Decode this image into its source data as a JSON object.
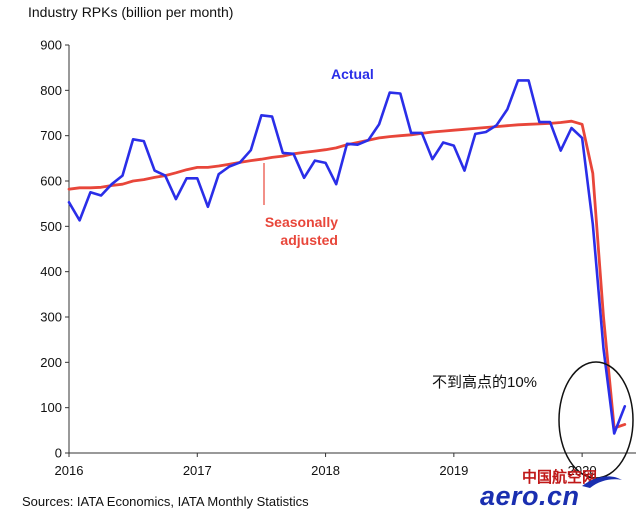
{
  "chart_data": {
    "type": "line",
    "title": "Industry RPKs (billion per month)",
    "source": "Sources: IATA Economics, IATA Monthly Statistics",
    "ylim": [
      0,
      900
    ],
    "y_ticks": [
      0,
      100,
      200,
      300,
      400,
      500,
      600,
      700,
      800,
      900
    ],
    "xlim": [
      2016,
      2020.42
    ],
    "x_ticks": [
      2016,
      2017,
      2018,
      2019,
      2020
    ],
    "x_tick_labels": [
      "2016",
      "2017",
      "2018",
      "2019",
      "2020"
    ],
    "grid": false,
    "series": [
      {
        "name": "Actual",
        "color": "#2a2ee8",
        "x": [
          2016.0,
          2016.083,
          2016.167,
          2016.25,
          2016.333,
          2016.417,
          2016.5,
          2016.583,
          2016.667,
          2016.75,
          2016.833,
          2016.917,
          2017.0,
          2017.083,
          2017.167,
          2017.25,
          2017.333,
          2017.417,
          2017.5,
          2017.583,
          2017.667,
          2017.75,
          2017.833,
          2017.917,
          2018.0,
          2018.083,
          2018.167,
          2018.25,
          2018.333,
          2018.417,
          2018.5,
          2018.583,
          2018.667,
          2018.75,
          2018.833,
          2018.917,
          2019.0,
          2019.083,
          2019.167,
          2019.25,
          2019.333,
          2019.417,
          2019.5,
          2019.583,
          2019.667,
          2019.75,
          2019.833,
          2019.917,
          2020.0,
          2020.083,
          2020.167,
          2020.25,
          2020.333
        ],
        "values": [
          553,
          513,
          575,
          568,
          593,
          612,
          692,
          688,
          623,
          612,
          560,
          606,
          606,
          543,
          615,
          632,
          641,
          668,
          745,
          742,
          662,
          660,
          607,
          645,
          640,
          593,
          682,
          680,
          690,
          725,
          795,
          793,
          706,
          706,
          648,
          685,
          678,
          623,
          704,
          708,
          723,
          758,
          822,
          822,
          730,
          730,
          667,
          717,
          695,
          505,
          230,
          43,
          103
        ]
      },
      {
        "name": "Seasonally adjusted",
        "color": "#e8463a",
        "x": [
          2016.0,
          2016.083,
          2016.167,
          2016.25,
          2016.333,
          2016.417,
          2016.5,
          2016.583,
          2016.667,
          2016.75,
          2016.833,
          2016.917,
          2017.0,
          2017.083,
          2017.167,
          2017.25,
          2017.333,
          2017.417,
          2017.5,
          2017.583,
          2017.667,
          2017.75,
          2017.833,
          2017.917,
          2018.0,
          2018.083,
          2018.167,
          2018.25,
          2018.333,
          2018.417,
          2018.5,
          2018.583,
          2018.667,
          2018.75,
          2018.833,
          2018.917,
          2019.0,
          2019.083,
          2019.167,
          2019.25,
          2019.333,
          2019.417,
          2019.5,
          2019.583,
          2019.667,
          2019.75,
          2019.833,
          2019.917,
          2020.0,
          2020.083,
          2020.167,
          2020.25,
          2020.333
        ],
        "values": [
          582,
          585,
          585,
          586,
          590,
          593,
          600,
          603,
          608,
          612,
          618,
          625,
          630,
          630,
          633,
          637,
          641,
          645,
          648,
          652,
          655,
          660,
          663,
          666,
          669,
          673,
          680,
          685,
          690,
          695,
          698,
          700,
          702,
          705,
          708,
          710,
          712,
          714,
          716,
          718,
          720,
          722,
          724,
          725,
          726,
          727,
          729,
          732,
          725,
          617,
          300,
          55,
          63
        ]
      }
    ],
    "annotations": {
      "actual_label": "Actual",
      "sa_label_line1": "Seasonally",
      "sa_label_line2": "adjusted",
      "callout": "不到高点的10%"
    },
    "watermark": "中国航空网 aero.cn"
  }
}
